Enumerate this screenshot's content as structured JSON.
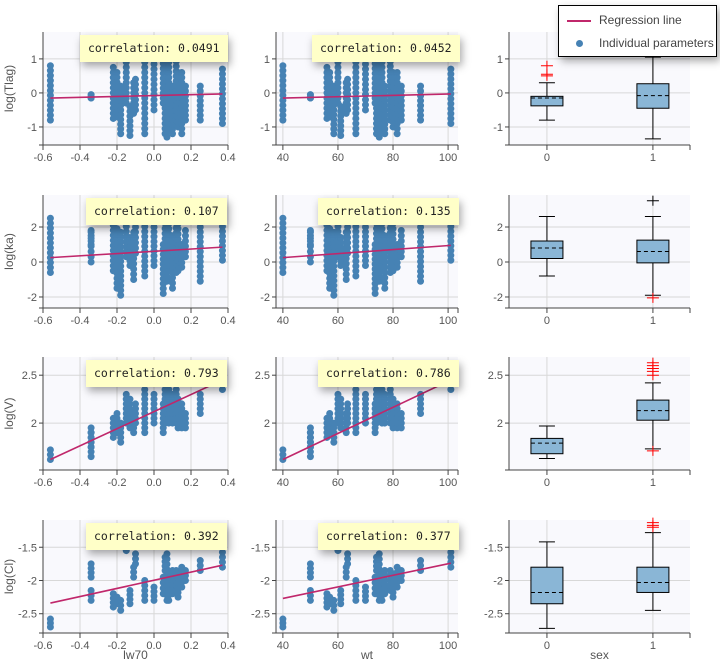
{
  "legend": {
    "regression": "Regression line",
    "individual": "Individual parameters"
  },
  "colors": {
    "points": "#4682b4",
    "regression": "#c0276b",
    "box": "#8ab6d6",
    "outlier": "#ff0000",
    "panel_bg": "#f9f9fd"
  },
  "chart_data": {
    "type": "scatter",
    "covariates": [
      {
        "name": "lw70",
        "xlim": [
          -0.6,
          0.4
        ],
        "ticks": [
          "-0.6",
          "-0.4",
          "-0.2",
          "0.0",
          "0.2",
          "0.4"
        ],
        "tickvals": [
          -0.6,
          -0.4,
          -0.2,
          0,
          0.2,
          0.4
        ]
      },
      {
        "name": "wt",
        "xlim": [
          37.5,
          103.6
        ],
        "ticks": [
          "40",
          "60",
          "80",
          "100"
        ],
        "tickvals": [
          40,
          60,
          80,
          100
        ]
      },
      {
        "name": "sex",
        "type": "boxplot",
        "categories": [
          "0",
          "1"
        ]
      }
    ],
    "parameters": [
      {
        "label": "log(Tlag)",
        "ylim": [
          -1.53,
          1.79
        ],
        "ticks": [
          "1",
          "0",
          "-1"
        ],
        "tickvals": [
          1,
          0,
          -1
        ],
        "correlation": [
          "correlation: 0.0491",
          "correlation: 0.0452"
        ],
        "regression": [
          [
            [
              -0.56,
              -0.15
            ],
            [
              0.37,
              -0.03
            ]
          ],
          [
            [
              40,
              -0.15
            ],
            [
              101,
              -0.03
            ]
          ]
        ],
        "box": [
          {
            "min": -0.8,
            "q1": -0.38,
            "median": -0.15,
            "q3": -0.1,
            "max": 0.3,
            "outliers": [
              0.5,
              0.55,
              0.8
            ]
          },
          {
            "min": -1.35,
            "q1": -0.45,
            "median": -0.08,
            "q3": 0.27,
            "max": 1.05,
            "outliers": []
          }
        ]
      },
      {
        "label": "log(ka)",
        "ylim": [
          -2.63,
          3.83
        ],
        "ticks": [
          "2",
          "0",
          "-2"
        ],
        "tickvals": [
          2,
          0,
          -2
        ],
        "correlation": [
          "correlation: 0.107",
          "correlation: 0.135"
        ],
        "regression": [
          [
            [
              -0.56,
              0.25
            ],
            [
              0.37,
              0.85
            ]
          ],
          [
            [
              40,
              0.25
            ],
            [
              101,
              0.95
            ]
          ]
        ],
        "box": [
          {
            "min": -0.8,
            "q1": 0.2,
            "median": 0.8,
            "q3": 1.2,
            "max": 2.6,
            "outliers": []
          },
          {
            "min": -1.9,
            "q1": -0.05,
            "median": 0.6,
            "q3": 1.25,
            "max": 2.6,
            "outliers": [
              3.5,
              -2.05
            ]
          }
        ]
      },
      {
        "label": "log(V)",
        "ylim": [
          1.51,
          2.69
        ],
        "ticks": [
          "2.5",
          "2"
        ],
        "tickvals": [
          2.5,
          2
        ],
        "correlation": [
          "correlation: 0.793",
          "correlation: 0.786"
        ],
        "regression": [
          [
            [
              -0.56,
              1.62
            ],
            [
              0.37,
              2.45
            ]
          ],
          [
            [
              40,
              1.62
            ],
            [
              101,
              2.45
            ]
          ]
        ],
        "box": [
          {
            "min": 1.63,
            "q1": 1.68,
            "median": 1.79,
            "q3": 1.84,
            "max": 1.97,
            "outliers": []
          },
          {
            "min": 1.73,
            "q1": 2.03,
            "median": 2.13,
            "q3": 2.24,
            "max": 2.42,
            "outliers": [
              2.5,
              2.54,
              2.57,
              2.6,
              2.63,
              1.71
            ]
          }
        ]
      },
      {
        "label": "log(Cl)",
        "ylim": [
          -2.79,
          -1.09
        ],
        "ticks": [
          "-1.5",
          "-2",
          "-2.5"
        ],
        "tickvals": [
          -1.5,
          -2,
          -2.5
        ],
        "correlation": [
          "correlation: 0.392",
          "correlation: 0.377"
        ],
        "regression": [
          [
            [
              -0.56,
              -2.34
            ],
            [
              0.37,
              -1.77
            ]
          ],
          [
            [
              40,
              -2.27
            ],
            [
              101,
              -1.74
            ]
          ]
        ],
        "box": [
          {
            "min": -2.72,
            "q1": -2.35,
            "median": -2.18,
            "q3": -1.8,
            "max": -1.42,
            "outliers": []
          },
          {
            "min": -2.45,
            "q1": -2.18,
            "median": -2.03,
            "q3": -1.8,
            "max": -1.28,
            "outliers": [
              -1.13,
              -1.17,
              -1.2
            ]
          }
        ]
      }
    ],
    "subjects_columns": [
      "lw70",
      "wt",
      "Tlag_lo",
      "Tlag_hi",
      "ka_lo",
      "ka_hi",
      "V_lo",
      "V_hi",
      "Cl_lo",
      "Cl_hi"
    ],
    "subjects": [
      [
        -0.56,
        40,
        -0.8,
        0.8,
        -0.6,
        2.5,
        1.62,
        1.72,
        -2.7,
        -2.58
      ],
      [
        -0.34,
        50,
        -0.15,
        -0.05,
        0.0,
        1.8,
        1.65,
        1.95,
        -2.3,
        -2.15
      ],
      [
        -0.34,
        50,
        -0.15,
        -0.1,
        1.0,
        1.7,
        1.75,
        1.9,
        -1.95,
        -1.75
      ],
      [
        -0.22,
        56,
        -0.75,
        0.75,
        -0.5,
        2.1,
        1.85,
        2.05,
        -2.4,
        -2.2
      ],
      [
        -0.2,
        57,
        -0.7,
        0.6,
        -1.5,
        1.9,
        1.9,
        2.1,
        -2.35,
        -2.25
      ],
      [
        -0.18,
        58.5,
        -1.2,
        0.2,
        -1.9,
        1.7,
        1.8,
        2.0,
        -2.45,
        -2.3
      ],
      [
        -0.15,
        60,
        -0.3,
        0.9,
        0.3,
        2.6,
        2.0,
        2.3,
        -1.55,
        -1.45
      ],
      [
        -0.13,
        61,
        -1.25,
        -0.4,
        -0.2,
        1.4,
        1.95,
        2.25,
        -2.35,
        -2.15
      ],
      [
        -0.11,
        63,
        -0.6,
        0.3,
        -1.0,
        1.7,
        1.9,
        2.1,
        -1.95,
        -1.8
      ],
      [
        -0.1,
        63.5,
        -0.5,
        0.4,
        0.5,
        2.0,
        2.0,
        2.2,
        -1.75,
        -1.6
      ],
      [
        -0.05,
        66.5,
        -1.2,
        0.9,
        -0.8,
        2.3,
        1.9,
        2.35,
        -2.3,
        -2.0
      ],
      [
        0,
        70,
        -0.5,
        0.85,
        -0.2,
        2.0,
        2.0,
        2.3,
        -2.3,
        -2.1
      ],
      [
        0.05,
        73.5,
        -0.3,
        1.3,
        -1.8,
        1.0,
        1.9,
        2.2,
        -2.2,
        -1.95
      ],
      [
        0.06,
        74,
        -1.2,
        0.6,
        -1.0,
        2.5,
        2.0,
        2.4,
        -1.85,
        -1.65
      ],
      [
        0.07,
        75,
        -1.3,
        0.95,
        -1.1,
        2.2,
        2.05,
        2.35,
        -2.3,
        -1.6
      ],
      [
        0.08,
        76,
        -0.9,
        1.5,
        -0.5,
        2.2,
        2.0,
        2.4,
        -2.3,
        -1.9
      ],
      [
        0.1,
        77,
        -1.2,
        0.2,
        -1.5,
        1.5,
        2.0,
        2.3,
        -2.2,
        -1.85
      ],
      [
        0.12,
        79,
        -0.8,
        1.5,
        -0.6,
        2.5,
        2.0,
        2.35,
        -2.15,
        -1.85
      ],
      [
        0.13,
        80,
        -1.0,
        0.6,
        -0.5,
        2.2,
        1.95,
        2.25,
        -2.25,
        -1.9
      ],
      [
        0.15,
        81.5,
        -1.2,
        0.6,
        -0.3,
        1.0,
        1.95,
        2.2,
        -2.1,
        -1.8
      ],
      [
        0.17,
        83,
        -0.8,
        0.2,
        0.3,
        1.8,
        1.95,
        2.1,
        -2.0,
        -1.85
      ],
      [
        0.25,
        90,
        -0.8,
        0.2,
        -1.1,
        2.0,
        2.1,
        2.3,
        -1.85,
        -1.7
      ],
      [
        0.37,
        101,
        -0.9,
        0.7,
        0.1,
        2.3,
        2.35,
        2.6,
        -1.8,
        -1.5
      ]
    ]
  }
}
